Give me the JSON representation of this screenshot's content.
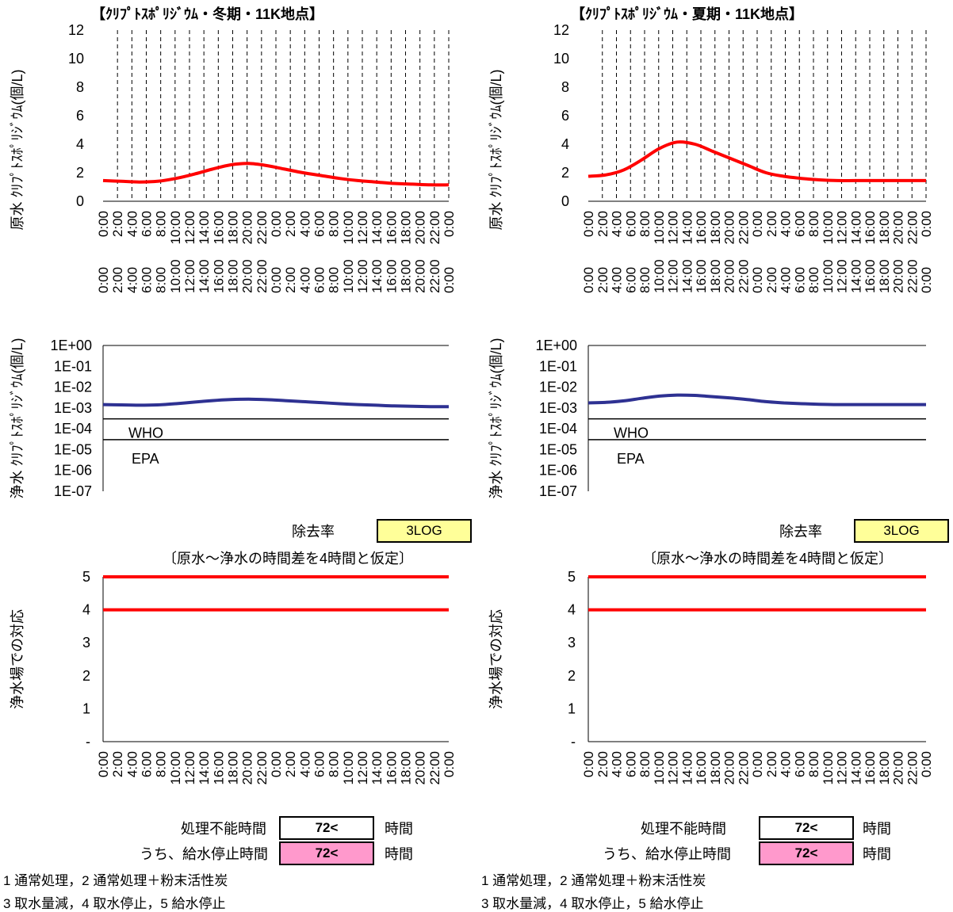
{
  "charts": {
    "raw_title_axis": "原水 ｸﾘﾌﾟﾄｽﾎﾟﾘｼﾞｳﾑ(個/L)",
    "treated_title_axis": "浄水 ｸﾘﾌﾟﾄｽﾎﾟﾘｼﾞｳﾑ(個/L)",
    "response_axis": "浄水場での対応",
    "time_labels": [
      "0:00",
      "2:00",
      "4:00",
      "6:00",
      "8:00",
      "10:00",
      "12:00",
      "14:00",
      "16:00",
      "18:00",
      "20:00",
      "22:00",
      "0:00",
      "2:00",
      "4:00",
      "6:00",
      "8:00",
      "10:00",
      "12:00",
      "14:00",
      "16:00",
      "18:00",
      "20:00",
      "22:00",
      "0:00"
    ],
    "log_ticks": [
      "1E+00",
      "1E-01",
      "1E-02",
      "1E-03",
      "1E-04",
      "1E-05",
      "1E-06",
      "1E-07"
    ],
    "linear_ticks": [
      "0",
      "2",
      "4",
      "6",
      "8",
      "10",
      "12"
    ],
    "response_ticks": [
      "-",
      "1",
      "2",
      "3",
      "4",
      "5"
    ],
    "who_label": "WHO",
    "epa_label": "EPA",
    "colors": {
      "raw_line": "#ff0000",
      "treated_line": "#2e3192",
      "response_line": "#ff0000",
      "pink": "#ff99cc",
      "yellow": "#ffff99"
    }
  },
  "panels": [
    {
      "title": "【ｸﾘﾌﾟﾄｽﾎﾟﾘｼﾞｳﾑ・冬期・11K地点】",
      "removal_label": "除去率",
      "removal_value": "3LOG",
      "assumption": "〔原水～浄水の時間差を4時間と仮定〕",
      "untreatable_label": "処理不能時間",
      "untreatable_value": "72<",
      "stop_label": "うち、給水停止時間",
      "stop_value": "72<",
      "unit": "時間",
      "legend_line1": "1 通常処理，2 通常処理＋粉末活性炭",
      "legend_line2": "3 取水量減，4 取水停止，5 給水停止"
    },
    {
      "title": "【ｸﾘﾌﾟﾄｽﾎﾟﾘｼﾞｳﾑ・夏期・11K地点】",
      "removal_label": "除去率",
      "removal_value": "3LOG",
      "assumption": "〔原水～浄水の時間差を4時間と仮定〕",
      "untreatable_label": "処理不能時間",
      "untreatable_value": "72<",
      "stop_label": "うち、給水停止時間",
      "stop_value": "72<",
      "unit": "時間",
      "legend_line1": "1 通常処理，2 通常処理＋粉末活性炭",
      "legend_line2": "3 取水量減，4 取水停止，5 給水停止"
    }
  ],
  "chart_data": [
    {
      "type": "line",
      "title": "【ｸﾘﾌﾟﾄｽﾎﾟﾘｼﾞｳﾑ・冬期・11K地点】",
      "ylabel": "原水 ｸﾘﾌﾟﾄｽﾎﾟﾘｼﾞｳﾑ(個/L)",
      "ylim": [
        0,
        12
      ],
      "series": [
        {
          "values": [
            1.45,
            1.4,
            1.35,
            1.4,
            1.6,
            1.9,
            2.25,
            2.55,
            2.65,
            2.5,
            2.25,
            2.0,
            1.8,
            1.6,
            1.45,
            1.35,
            1.25,
            1.2,
            1.15,
            1.15
          ]
        }
      ]
    },
    {
      "type": "line",
      "title": "【ｸﾘﾌﾟﾄｽﾎﾟﾘｼﾞｳﾑ・夏期・11K地点】",
      "ylabel": "原水 ｸﾘﾌﾟﾄｽﾎﾟﾘｼﾞｳﾑ(個/L)",
      "ylim": [
        0,
        12
      ],
      "series": [
        {
          "values": [
            1.75,
            1.85,
            2.2,
            2.9,
            3.7,
            4.15,
            4.0,
            3.5,
            3.0,
            2.5,
            2.0,
            1.75,
            1.6,
            1.5,
            1.45,
            1.45,
            1.45,
            1.45,
            1.45,
            1.45
          ]
        }
      ]
    },
    {
      "type": "line",
      "scale": "log",
      "ylabel": "浄水 ｸﾘﾌﾟﾄｽﾎﾟﾘｼﾞｳﾑ(個/L)",
      "ylim": [
        1e-07,
        1
      ],
      "series": [
        {
          "values": [
            0.00145,
            0.0014,
            0.00135,
            0.0014,
            0.0016,
            0.0019,
            0.00225,
            0.00255,
            0.00265,
            0.0025,
            0.00225,
            0.002,
            0.0018,
            0.0016,
            0.00145,
            0.00135,
            0.00125,
            0.0012,
            0.00115,
            0.00115
          ]
        }
      ],
      "reference_lines": [
        {
          "label": "WHO",
          "value": 0.0003
        },
        {
          "label": "EPA",
          "value": 3e-05
        }
      ]
    },
    {
      "type": "line",
      "scale": "log",
      "ylabel": "浄水 ｸﾘﾌﾟﾄｽﾎﾟﾘｼﾞｳﾑ(個/L)",
      "ylim": [
        1e-07,
        1
      ],
      "series": [
        {
          "values": [
            0.00175,
            0.00185,
            0.0022,
            0.0029,
            0.0037,
            0.00415,
            0.004,
            0.0035,
            0.003,
            0.0025,
            0.002,
            0.00175,
            0.0016,
            0.0015,
            0.00145,
            0.00145,
            0.00145,
            0.00145,
            0.00145,
            0.00145
          ]
        }
      ],
      "reference_lines": [
        {
          "label": "WHO",
          "value": 0.0003
        },
        {
          "label": "EPA",
          "value": 3e-05
        }
      ]
    },
    {
      "type": "line",
      "ylabel": "浄水場での対応",
      "ylim": [
        0,
        5
      ],
      "series": [
        {
          "values": [
            5,
            5
          ]
        },
        {
          "values": [
            4,
            4
          ]
        }
      ]
    },
    {
      "type": "line",
      "ylabel": "浄水場での対応",
      "ylim": [
        0,
        5
      ],
      "series": [
        {
          "values": [
            5,
            5
          ]
        },
        {
          "values": [
            4,
            4
          ]
        }
      ]
    }
  ]
}
